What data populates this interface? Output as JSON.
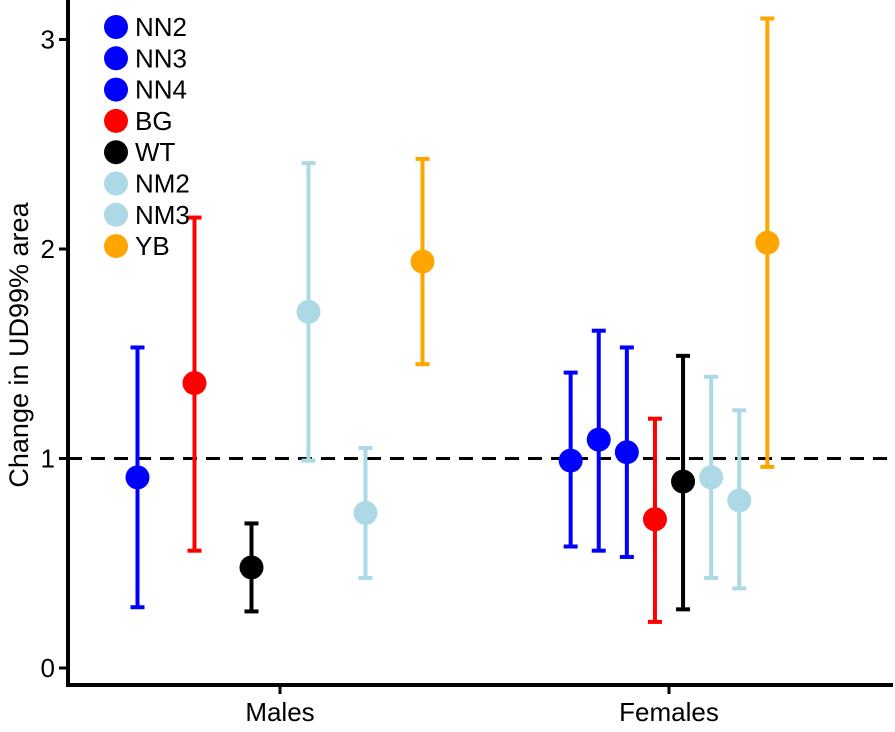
{
  "chart_data": {
    "type": "scatter",
    "subtype": "point-with-error-bars",
    "title": "",
    "xlabel": "",
    "ylabel": "Change in UD99% area",
    "categories": [
      "Males",
      "Females"
    ],
    "ylim": [
      0,
      3.2
    ],
    "yticks": [
      0,
      1,
      2,
      3
    ],
    "reference_line": {
      "y": 1,
      "style": "dashed",
      "color": "#000000"
    },
    "grid": false,
    "legend_position": "top-left",
    "legend": [
      {
        "label": "NN2",
        "color": "#0000ff"
      },
      {
        "label": "NN3",
        "color": "#0000ff"
      },
      {
        "label": "NN4",
        "color": "#0000ff"
      },
      {
        "label": "BG",
        "color": "#ff0000"
      },
      {
        "label": "WT",
        "color": "#000000"
      },
      {
        "label": "NM2",
        "color": "#add8e6"
      },
      {
        "label": "NM3",
        "color": "#add8e6"
      },
      {
        "label": "YB",
        "color": "#ffa500"
      }
    ],
    "series": [
      {
        "group": "Males",
        "name": "NN2",
        "color": "#0000ff",
        "value": 0.91,
        "lower": 0.29,
        "upper": 1.53
      },
      {
        "group": "Males",
        "name": "BG",
        "color": "#ff0000",
        "value": 1.36,
        "lower": 0.56,
        "upper": 2.15
      },
      {
        "group": "Males",
        "name": "WT",
        "color": "#000000",
        "value": 0.48,
        "lower": 0.27,
        "upper": 0.69
      },
      {
        "group": "Males",
        "name": "NM2",
        "color": "#add8e6",
        "value": 1.7,
        "lower": 0.99,
        "upper": 2.41
      },
      {
        "group": "Males",
        "name": "NM3",
        "color": "#add8e6",
        "value": 0.74,
        "lower": 0.43,
        "upper": 1.05
      },
      {
        "group": "Males",
        "name": "YB",
        "color": "#ffa500",
        "value": 1.94,
        "lower": 1.45,
        "upper": 2.43
      },
      {
        "group": "Females",
        "name": "NN2",
        "color": "#0000ff",
        "value": 0.99,
        "lower": 0.58,
        "upper": 1.41
      },
      {
        "group": "Females",
        "name": "NN3",
        "color": "#0000ff",
        "value": 1.09,
        "lower": 0.56,
        "upper": 1.61
      },
      {
        "group": "Females",
        "name": "NN4",
        "color": "#0000ff",
        "value": 1.03,
        "lower": 0.53,
        "upper": 1.53
      },
      {
        "group": "Females",
        "name": "BG",
        "color": "#ff0000",
        "value": 0.71,
        "lower": 0.22,
        "upper": 1.19
      },
      {
        "group": "Females",
        "name": "WT",
        "color": "#000000",
        "value": 0.89,
        "lower": 0.28,
        "upper": 1.49
      },
      {
        "group": "Females",
        "name": "NM2",
        "color": "#add8e6",
        "value": 0.91,
        "lower": 0.43,
        "upper": 1.39
      },
      {
        "group": "Females",
        "name": "NM3",
        "color": "#add8e6",
        "value": 0.8,
        "lower": 0.38,
        "upper": 1.23
      },
      {
        "group": "Females",
        "name": "YB",
        "color": "#ffa500",
        "value": 2.03,
        "lower": 0.96,
        "upper": 3.1
      }
    ]
  }
}
